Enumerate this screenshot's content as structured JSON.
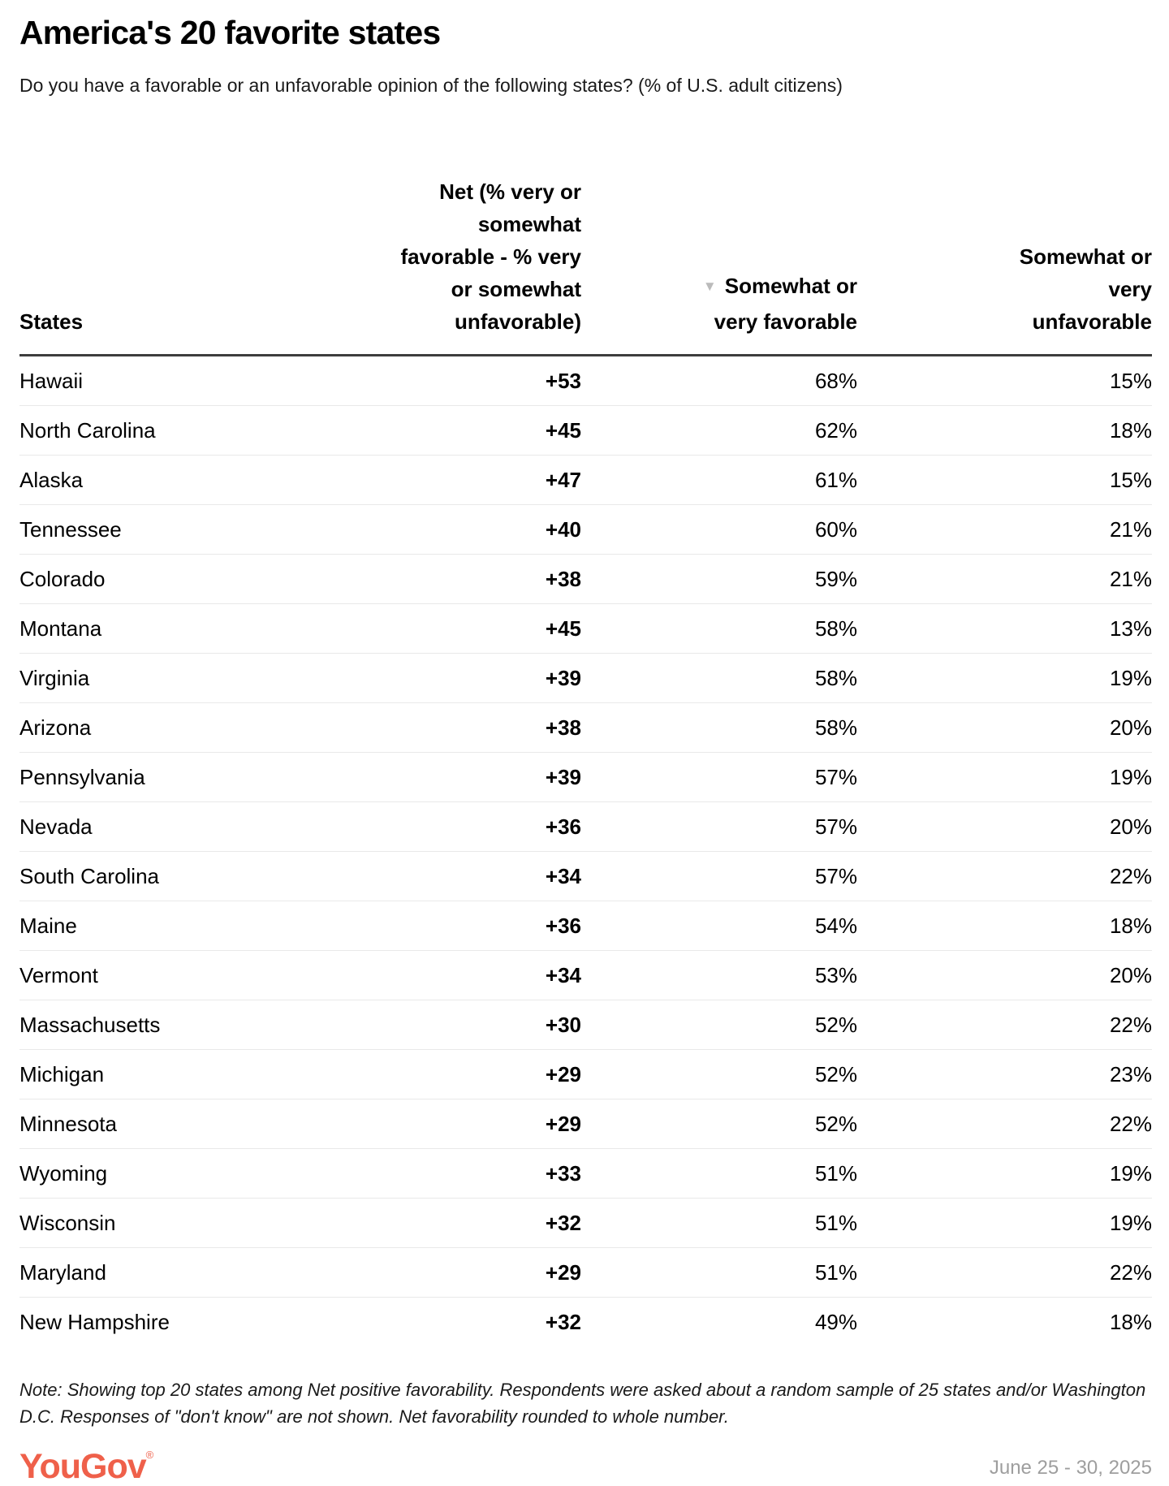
{
  "header": {
    "title": "America's 20 favorite states",
    "subtitle": "Do you have a favorable or an unfavorable opinion of the following states? (% of U.S. adult citizens)"
  },
  "table": {
    "columns": {
      "states_label": "States",
      "net_lines": [
        "Net (% very or",
        "somewhat",
        "favorable - % very",
        "or somewhat",
        "unfavorable)"
      ],
      "sort_icon": "▼",
      "favorable_lines": [
        "Somewhat or",
        "very favorable"
      ],
      "unfavorable_lines": [
        "Somewhat or",
        "very",
        "unfavorable"
      ]
    },
    "rows": [
      {
        "state": "Hawaii",
        "net": "+53",
        "favorable": "68%",
        "unfavorable": "15%"
      },
      {
        "state": "North Carolina",
        "net": "+45",
        "favorable": "62%",
        "unfavorable": "18%"
      },
      {
        "state": "Alaska",
        "net": "+47",
        "favorable": "61%",
        "unfavorable": "15%"
      },
      {
        "state": "Tennessee",
        "net": "+40",
        "favorable": "60%",
        "unfavorable": "21%"
      },
      {
        "state": "Colorado",
        "net": "+38",
        "favorable": "59%",
        "unfavorable": "21%"
      },
      {
        "state": "Montana",
        "net": "+45",
        "favorable": "58%",
        "unfavorable": "13%"
      },
      {
        "state": "Virginia",
        "net": "+39",
        "favorable": "58%",
        "unfavorable": "19%"
      },
      {
        "state": "Arizona",
        "net": "+38",
        "favorable": "58%",
        "unfavorable": "20%"
      },
      {
        "state": "Pennsylvania",
        "net": "+39",
        "favorable": "57%",
        "unfavorable": "19%"
      },
      {
        "state": "Nevada",
        "net": "+36",
        "favorable": "57%",
        "unfavorable": "20%"
      },
      {
        "state": "South Carolina",
        "net": "+34",
        "favorable": "57%",
        "unfavorable": "22%"
      },
      {
        "state": "Maine",
        "net": "+36",
        "favorable": "54%",
        "unfavorable": "18%"
      },
      {
        "state": "Vermont",
        "net": "+34",
        "favorable": "53%",
        "unfavorable": "20%"
      },
      {
        "state": "Massachusetts",
        "net": "+30",
        "favorable": "52%",
        "unfavorable": "22%"
      },
      {
        "state": "Michigan",
        "net": "+29",
        "favorable": "52%",
        "unfavorable": "23%"
      },
      {
        "state": "Minnesota",
        "net": "+29",
        "favorable": "52%",
        "unfavorable": "22%"
      },
      {
        "state": "Wyoming",
        "net": "+33",
        "favorable": "51%",
        "unfavorable": "19%"
      },
      {
        "state": "Wisconsin",
        "net": "+32",
        "favorable": "51%",
        "unfavorable": "19%"
      },
      {
        "state": "Maryland",
        "net": "+29",
        "favorable": "51%",
        "unfavorable": "22%"
      },
      {
        "state": "New Hampshire",
        "net": "+32",
        "favorable": "49%",
        "unfavorable": "18%"
      }
    ]
  },
  "footer": {
    "note": "Note: Showing top 20 states among Net positive favorability. Respondents were asked about a random sample of 25 states and/or Washington D.C. Responses of \"don't know\" are not shown. Net favorability rounded to whole number.",
    "logo": "YouGov",
    "logo_registered": "®",
    "date_range": "June 25 - 30, 2025"
  },
  "colors": {
    "logo_accent": "#ef604a",
    "sort_icon": "#bbbbbb",
    "date_text": "#9e9e9e",
    "header_rule": "#3d3d3d",
    "row_separator": "#e9e9e9"
  },
  "chart_data": {
    "type": "table",
    "title": "America's 20 favorite states",
    "subtitle": "Do you have a favorable or an unfavorable opinion of the following states? (% of U.S. adult citizens)",
    "columns": [
      "States",
      "Net (% very or somewhat favorable - % very or somewhat unfavorable)",
      "Somewhat or very favorable",
      "Somewhat or very unfavorable"
    ],
    "sorted_by": "Somewhat or very favorable",
    "sort_direction": "descending",
    "categories": [
      "Hawaii",
      "North Carolina",
      "Alaska",
      "Tennessee",
      "Colorado",
      "Montana",
      "Virginia",
      "Arizona",
      "Pennsylvania",
      "Nevada",
      "South Carolina",
      "Maine",
      "Vermont",
      "Massachusetts",
      "Michigan",
      "Minnesota",
      "Wyoming",
      "Wisconsin",
      "Maryland",
      "New Hampshire"
    ],
    "series": [
      {
        "name": "Net favorability",
        "values": [
          53,
          45,
          47,
          40,
          38,
          45,
          39,
          38,
          39,
          36,
          34,
          36,
          34,
          30,
          29,
          29,
          33,
          32,
          29,
          32
        ]
      },
      {
        "name": "Somewhat or very favorable (%)",
        "values": [
          68,
          62,
          61,
          60,
          59,
          58,
          58,
          58,
          57,
          57,
          57,
          54,
          53,
          52,
          52,
          52,
          51,
          51,
          51,
          49
        ]
      },
      {
        "name": "Somewhat or very unfavorable (%)",
        "values": [
          15,
          18,
          15,
          21,
          21,
          13,
          19,
          20,
          19,
          20,
          22,
          18,
          20,
          22,
          23,
          22,
          19,
          19,
          22,
          18
        ]
      }
    ]
  }
}
